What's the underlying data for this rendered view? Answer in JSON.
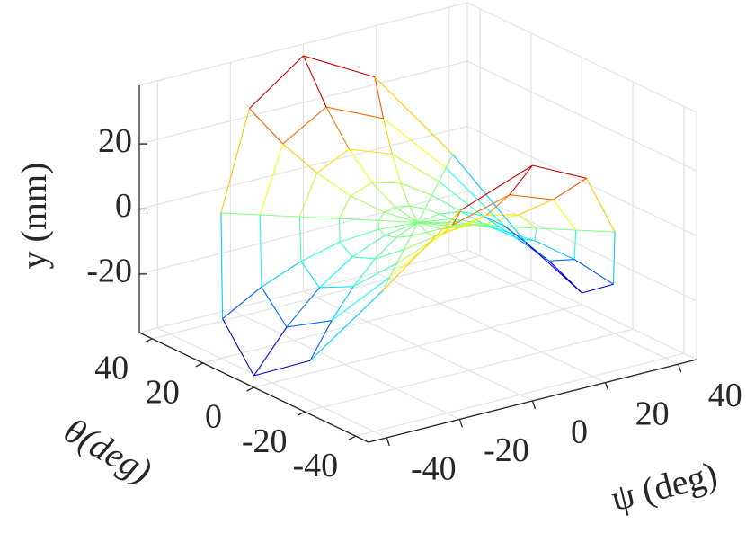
{
  "chart_data": {
    "type": "mesh",
    "xlabel": "ψ (deg)",
    "ylabel": "θ(deg)",
    "zlabel": "y (mm)",
    "xlim": [
      -45,
      45
    ],
    "xticks": [
      -40,
      -20,
      0,
      20,
      40
    ],
    "ylim": [
      -45,
      45
    ],
    "yticks": [
      -40,
      -20,
      0,
      20,
      40
    ],
    "zlim": [
      -38,
      38
    ],
    "zticks": [
      -20,
      0,
      20
    ],
    "grid": true,
    "colormap": "jet",
    "x": [
      [
        0,
        0,
        0,
        0,
        0,
        0,
        0,
        0,
        0,
        0,
        0,
        0,
        0,
        0,
        0,
        0
      ],
      [
        9,
        8.3,
        6.4,
        3.4,
        0,
        -3.4,
        -6.4,
        -8.3,
        -9,
        -8.3,
        -6.4,
        -3.4,
        0,
        3.4,
        6.4,
        8.3
      ],
      [
        18,
        16.6,
        12.7,
        6.9,
        0,
        -6.9,
        -12.7,
        -16.6,
        -18,
        -16.6,
        -12.7,
        -6.9,
        0,
        6.9,
        12.7,
        16.6
      ],
      [
        27,
        24.9,
        19.1,
        10.3,
        0,
        -10.3,
        -19.1,
        -24.9,
        -27,
        -24.9,
        -19.1,
        -10.3,
        0,
        10.3,
        19.1,
        24.9
      ],
      [
        36,
        33.3,
        25.5,
        13.8,
        0,
        -13.8,
        -25.5,
        -33.3,
        -36,
        -33.3,
        -25.5,
        -13.8,
        0,
        13.8,
        25.5,
        33.3
      ],
      [
        45,
        41.6,
        31.8,
        17.2,
        0,
        -17.2,
        -31.8,
        -41.6,
        -45,
        -41.6,
        -31.8,
        -17.2,
        0,
        17.2,
        31.8,
        41.6
      ]
    ],
    "y": [
      [
        0,
        0,
        0,
        0,
        0,
        0,
        0,
        0,
        0,
        0,
        0,
        0,
        0,
        0,
        0,
        0
      ],
      [
        0,
        3.4,
        6.4,
        8.3,
        9,
        8.3,
        6.4,
        3.4,
        0,
        -3.4,
        -6.4,
        -8.3,
        -9,
        -8.3,
        -6.4,
        -3.4
      ],
      [
        0,
        6.9,
        12.7,
        16.6,
        18,
        16.6,
        12.7,
        6.9,
        0,
        -6.9,
        -12.7,
        -16.6,
        -18,
        -16.6,
        -12.7,
        -6.9
      ],
      [
        0,
        10.3,
        19.1,
        24.9,
        27,
        24.9,
        19.1,
        10.3,
        0,
        -10.3,
        -19.1,
        -24.9,
        -27,
        -24.9,
        -19.1,
        -10.3
      ],
      [
        0,
        13.8,
        25.5,
        33.3,
        36,
        33.3,
        25.5,
        13.8,
        0,
        -13.8,
        -25.5,
        -33.3,
        -36,
        -33.3,
        -25.5,
        -13.8
      ],
      [
        0,
        17.2,
        31.8,
        41.6,
        45,
        41.6,
        31.8,
        17.2,
        0,
        -17.2,
        -31.8,
        -41.6,
        -45,
        -41.6,
        -31.8,
        -17.2
      ]
    ],
    "z": [
      [
        0,
        0,
        0,
        0,
        0,
        0,
        0,
        0,
        0,
        0,
        0,
        0,
        0,
        0,
        0,
        0
      ],
      [
        -1.4,
        -1,
        0,
        1,
        1.4,
        1,
        0,
        -1,
        -1.4,
        -1,
        0,
        1,
        1.4,
        1,
        0,
        -1
      ],
      [
        -5.5,
        -3.9,
        0,
        3.9,
        5.5,
        3.9,
        0,
        -3.9,
        -5.5,
        -3.9,
        0,
        3.9,
        5.5,
        3.9,
        0,
        -3.9
      ],
      [
        -12.4,
        -8.8,
        0,
        8.8,
        12.4,
        8.8,
        0,
        -8.8,
        -12.4,
        -8.8,
        0,
        8.8,
        12.4,
        8.8,
        0,
        -8.8
      ],
      [
        -22,
        -15.6,
        0,
        15.6,
        22,
        15.6,
        0,
        -15.6,
        -22,
        -15.6,
        0,
        15.6,
        22,
        15.6,
        0,
        -15.6
      ],
      [
        -34.4,
        -24.3,
        0,
        24.3,
        34.4,
        24.3,
        0,
        -24.3,
        -34.4,
        -24.3,
        0,
        24.3,
        34.4,
        24.3,
        0,
        -24.3
      ]
    ]
  }
}
